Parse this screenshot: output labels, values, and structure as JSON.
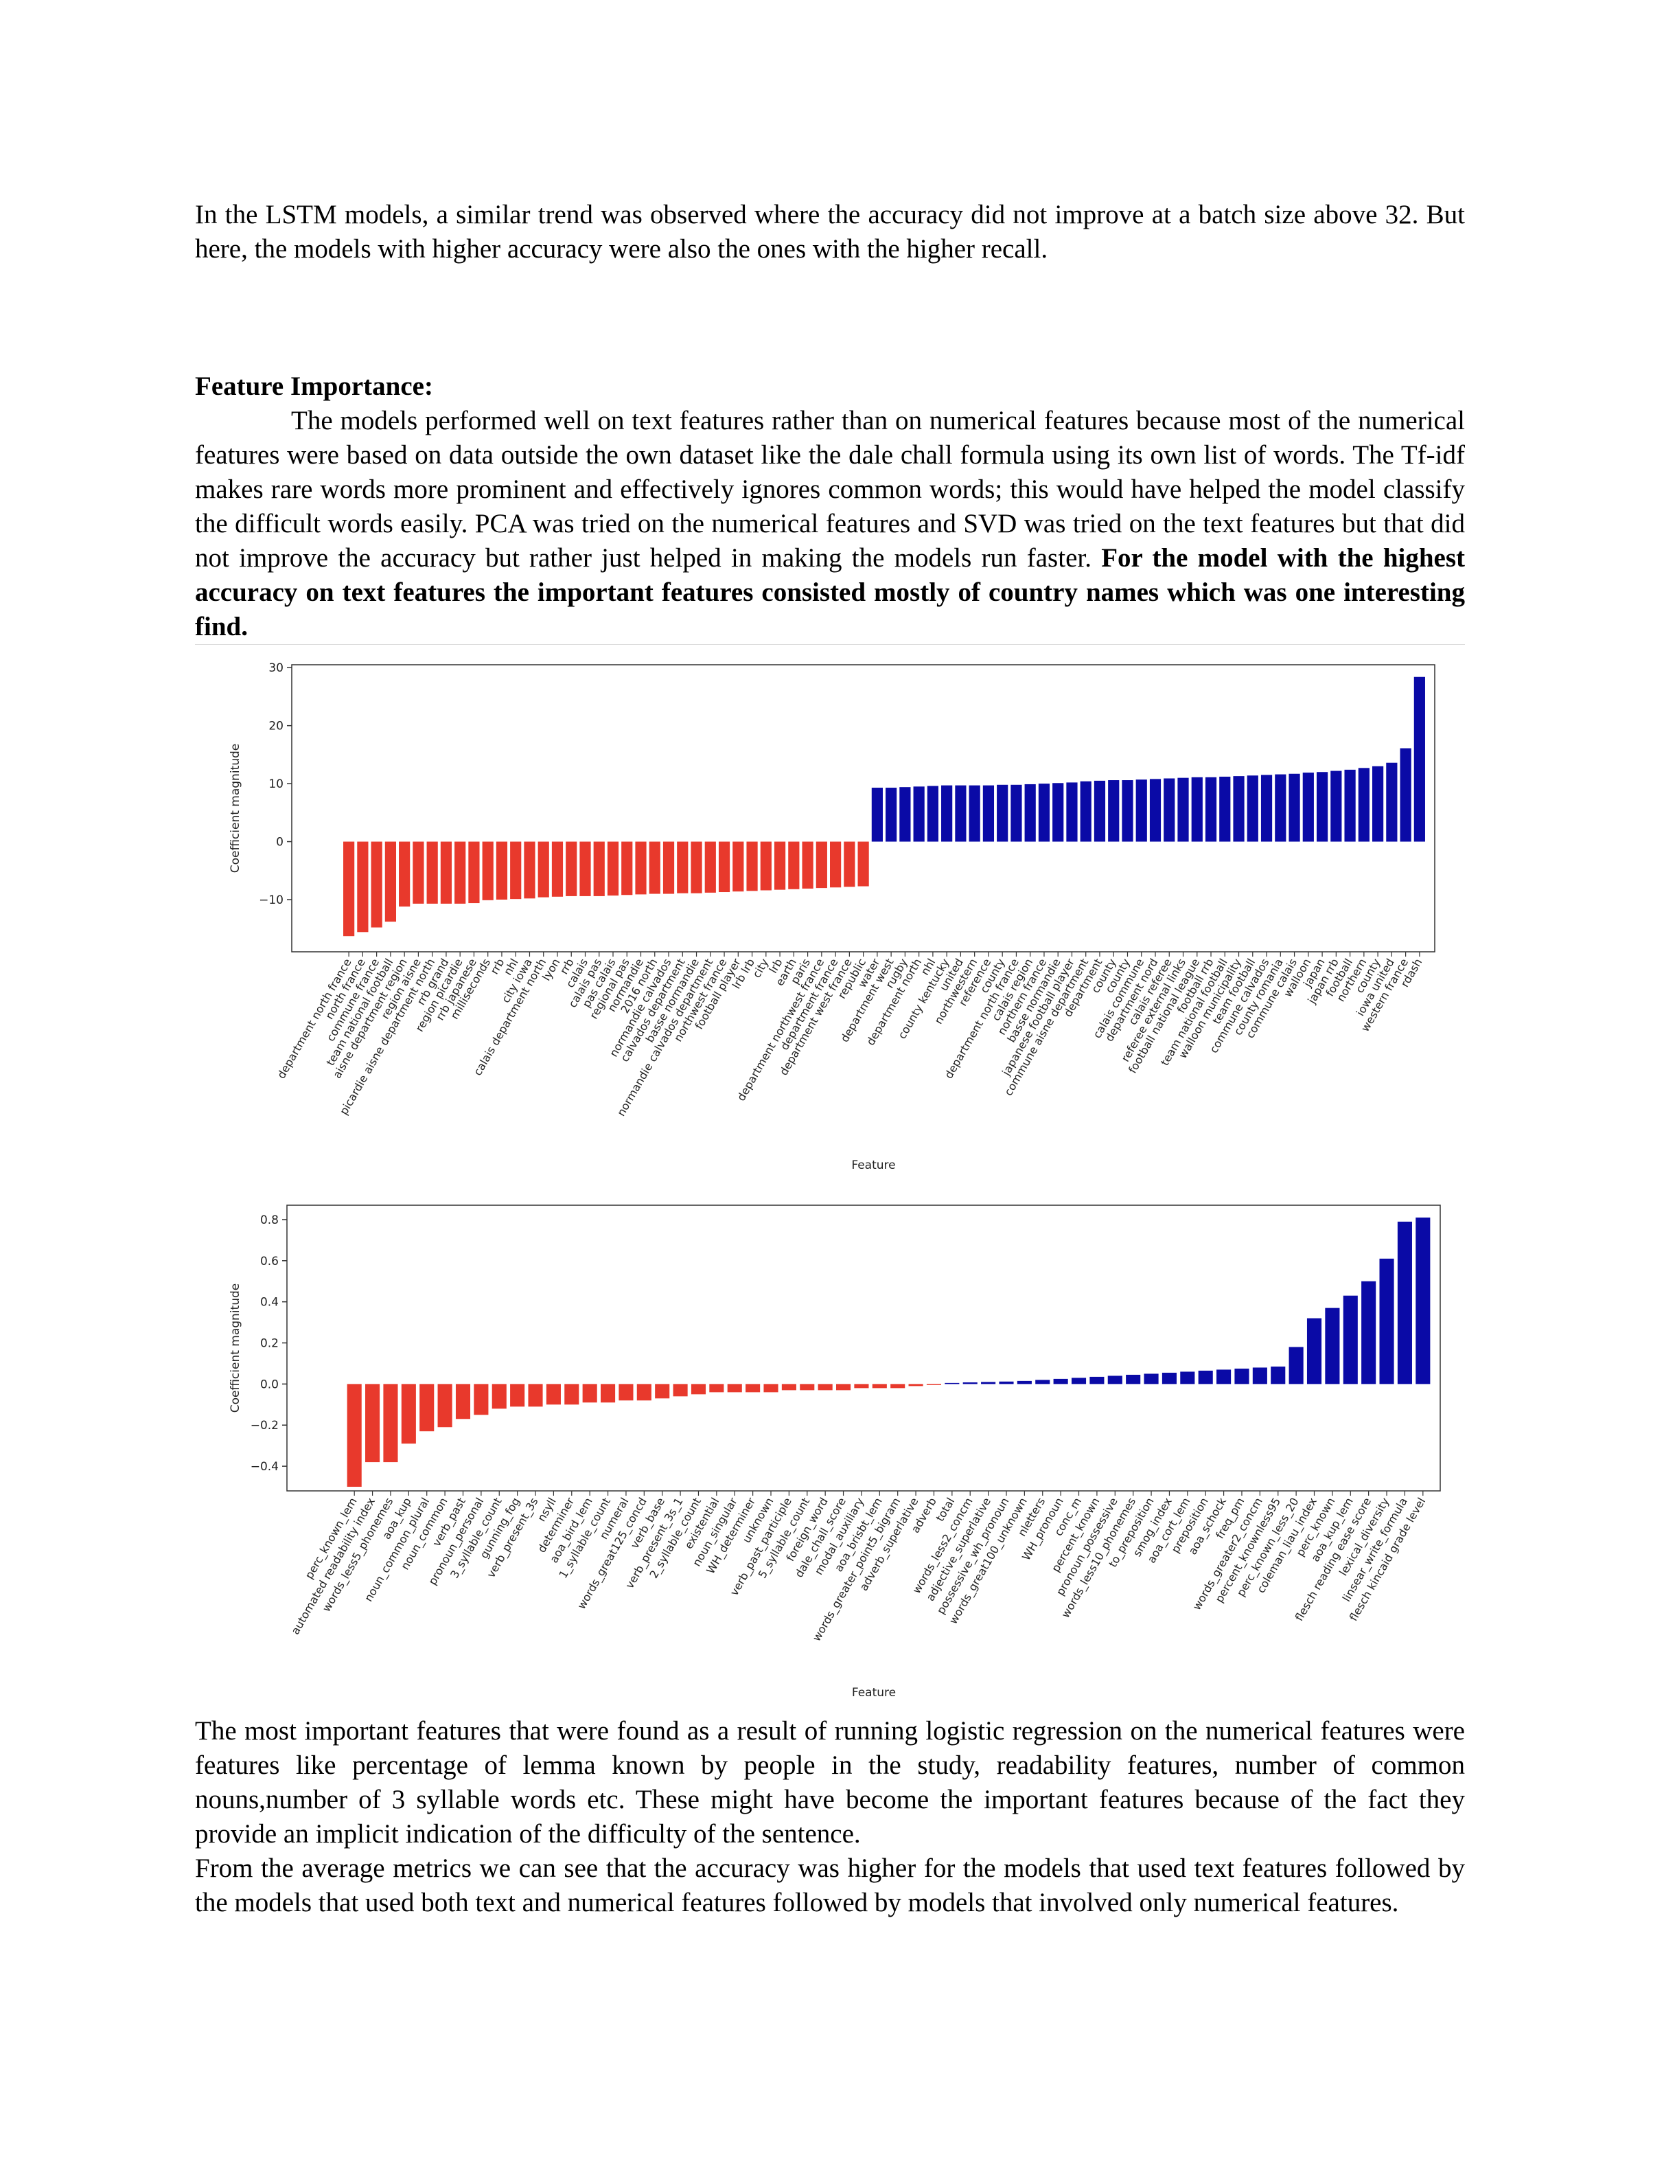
{
  "paragraphs": {
    "intro": "In the LSTM models, a similar trend was observed where the accuracy did not improve at a batch size above 32. But here, the models with higher accuracy were also the ones with the higher recall.",
    "heading": "Feature Importance:",
    "fi_plain": "The models performed well on text features rather than on numerical features because most of the numerical features were based on data outside the own dataset like the dale chall formula using its own list of words. The Tf-idf makes rare words more prominent and effectively ignores common words; this would have helped the model classify the difficult words easily. PCA was tried on the numerical features and SVD was tried on the text features but that did not improve the accuracy but rather just helped in making the models run faster.",
    "fi_bold": "For the model with the highest accuracy on text features the important features consisted mostly of country names which was one interesting find.",
    "after_charts": "The most important features that were found as a result of running logistic regression on the numerical features were features like percentage of lemma known by people in the study, readability features, number of common nouns,number of 3 syllable words etc. These might have become the important features because of the fact they provide an implicit indication of the difficulty of the sentence.",
    "averages": "From the average metrics we can see that the accuracy was higher for the models that used text features followed by the models that used both text and numerical features followed by models that involved only numerical features."
  },
  "colors": {
    "negative": "#e8392c",
    "positive": "#0a0aa6"
  },
  "chart_data": [
    {
      "type": "bar",
      "title": "",
      "xlabel": "Feature",
      "ylabel": "Coefficient magnitude",
      "ylim": [
        -19,
        30.5
      ],
      "yticks": [
        -10,
        0,
        10,
        20,
        30
      ],
      "ytick_labels": [
        "−10",
        "0",
        "10",
        "20",
        "30"
      ],
      "grid": false,
      "categories": [
        "department north france",
        "north france",
        "commune france",
        "team national football",
        "aisne department region",
        "region aisne",
        "picardie aisne department north",
        "rrb grand",
        "region picardie",
        "rrb japanese",
        "milliseconds",
        "rrb",
        "nhl",
        "city iowa",
        "calais department north",
        "lyon",
        "rrb",
        "calais",
        "calais pas",
        "pas calais",
        "regional pas",
        "normandie",
        "2016 north",
        "normandie calvados",
        "calvados department",
        "basse normandie",
        "normandie calvados department",
        "northwest france",
        "football player",
        "lrb lrb",
        "city",
        "lrb",
        "earth",
        "paris",
        "department northwest france",
        "department france",
        "department west france",
        "republic",
        "water",
        "department west",
        "rugby",
        "department north",
        "nhl",
        "county kentucky",
        "united",
        "northwestern",
        "reference",
        "county",
        "department north france",
        "calais region",
        "northern france",
        "basse normandie",
        "japanese football player",
        "commune aisne department",
        "department",
        "county",
        "county",
        "calais commune",
        "department nord",
        "calais referee",
        "referee external links",
        "football national league",
        "football rrb",
        "team national football",
        "walloon municipality",
        "team football",
        "commune calvados",
        "county romania",
        "commune calais",
        "walloon",
        "japan",
        "japan rrb",
        "football",
        "northern",
        "county",
        "iowa united",
        "western france",
        "rdash"
      ],
      "values": [
        -16.3,
        -15.6,
        -14.8,
        -13.8,
        -11.2,
        -10.7,
        -10.7,
        -10.7,
        -10.7,
        -10.6,
        -10.1,
        -10.0,
        -9.9,
        -9.8,
        -9.6,
        -9.5,
        -9.4,
        -9.4,
        -9.4,
        -9.3,
        -9.2,
        -9.1,
        -9.0,
        -9.0,
        -8.9,
        -8.9,
        -8.8,
        -8.7,
        -8.6,
        -8.5,
        -8.4,
        -8.3,
        -8.2,
        -8.1,
        -8.0,
        -7.9,
        -7.8,
        -7.7,
        9.3,
        9.3,
        9.4,
        9.5,
        9.6,
        9.7,
        9.7,
        9.7,
        9.7,
        9.8,
        9.8,
        9.9,
        10.0,
        10.1,
        10.2,
        10.4,
        10.5,
        10.6,
        10.6,
        10.7,
        10.8,
        10.9,
        11.0,
        11.1,
        11.1,
        11.2,
        11.3,
        11.4,
        11.5,
        11.6,
        11.7,
        11.9,
        12.0,
        12.2,
        12.4,
        12.7,
        13.0,
        13.6,
        16.1,
        28.4
      ]
    },
    {
      "type": "bar",
      "title": "",
      "xlabel": "Feature",
      "ylabel": "Coefficient magnitude",
      "ylim": [
        -0.52,
        0.87
      ],
      "yticks": [
        -0.4,
        -0.2,
        0.0,
        0.2,
        0.4,
        0.6,
        0.8
      ],
      "ytick_labels": [
        "−0.4",
        "−0.2",
        "0.0",
        "0.2",
        "0.4",
        "0.6",
        "0.8"
      ],
      "grid": false,
      "categories": [
        "perc_known_lem",
        "automated readability index",
        "words_less5_phonemes",
        "aoa_kup",
        "noun_common_plural",
        "noun_common",
        "verb_past",
        "pronoun_personal",
        "3_syllable_count",
        "gunning_fog",
        "verb_present_3s",
        "nsyll",
        "determiner",
        "aoa_bird_lem",
        "1_syllable_count",
        "numeral",
        "words_great125_concd",
        "verb_base",
        "verb_present_3s_1",
        "2_syllable_count",
        "existential",
        "noun_singular",
        "WH_determiner",
        "unknown",
        "verb_past_participle",
        "5_syllable_count",
        "foreign_word",
        "dale_chall_score",
        "modal_auxiliary",
        "aoa_brisbt_lem",
        "words_greater_point5_bigram",
        "adverb_superlative",
        "adverb",
        "total",
        "words_less2_concm",
        "adjective_superlative",
        "possessive_wh_pronoun",
        "words_great100_unknown",
        "nletters",
        "WH_pronoun",
        "conc_m",
        "percent_known",
        "pronoun_possessive",
        "words_less10_phonemes",
        "to_preposition",
        "smog_index",
        "aoa_cort_lem",
        "preposition",
        "aoa_schock",
        "freq_pm",
        "words_greater2_concm",
        "percent_knownless95",
        "perc_known_less_20",
        "coleman_liau_index",
        "perc_known",
        "aoa_kup_lem",
        "flesch reading ease score",
        "lexical_diversity",
        "linsear_write_formula",
        "flesch kincaid grade level"
      ],
      "values": [
        -0.5,
        -0.38,
        -0.38,
        -0.29,
        -0.23,
        -0.21,
        -0.17,
        -0.15,
        -0.12,
        -0.11,
        -0.11,
        -0.1,
        -0.1,
        -0.09,
        -0.09,
        -0.08,
        -0.08,
        -0.07,
        -0.06,
        -0.05,
        -0.04,
        -0.04,
        -0.04,
        -0.04,
        -0.03,
        -0.03,
        -0.03,
        -0.03,
        -0.02,
        -0.02,
        -0.02,
        -0.01,
        -0.005,
        0.005,
        0.008,
        0.01,
        0.012,
        0.015,
        0.02,
        0.025,
        0.03,
        0.035,
        0.04,
        0.045,
        0.05,
        0.055,
        0.06,
        0.065,
        0.07,
        0.075,
        0.08,
        0.085,
        0.18,
        0.32,
        0.37,
        0.43,
        0.5,
        0.61,
        0.79,
        0.81
      ]
    }
  ]
}
